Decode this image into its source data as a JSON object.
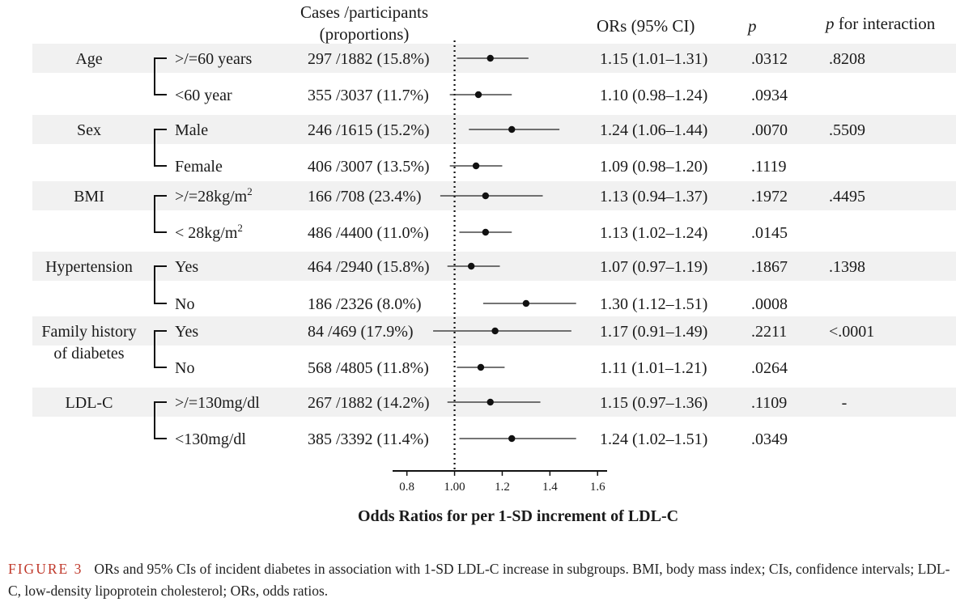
{
  "headers": {
    "cases_line1": "Cases /participants",
    "cases_line2": "(proportions)",
    "ors": "ORs (95% CI)",
    "p": "p",
    "p_interaction_italic": "p",
    "p_interaction_rest": " for interaction"
  },
  "groups": [
    {
      "label_lines": [
        "Age"
      ],
      "p_interaction": ".8208"
    },
    {
      "label_lines": [
        "Sex"
      ],
      "p_interaction": ".5509"
    },
    {
      "label_lines": [
        "BMI"
      ],
      "p_interaction": ".4495"
    },
    {
      "label_lines": [
        "Hypertension"
      ],
      "p_interaction": ".1398"
    },
    {
      "label_lines": [
        "Family history",
        "of diabetes"
      ],
      "p_interaction": "<.0001"
    },
    {
      "label_lines": [
        "LDL-C"
      ],
      "p_interaction": "-"
    }
  ],
  "rows": [
    {
      "group": 0,
      "label": ">/=60 years",
      "cases": "297 /1882 (15.8%)",
      "ci_text": "1.15 (1.01–1.31)",
      "p": ".0312",
      "or": 1.15,
      "lo": 1.01,
      "hi": 1.31
    },
    {
      "group": 0,
      "label": "<60 year",
      "cases": "355 /3037 (11.7%)",
      "ci_text": "1.10 (0.98–1.24)",
      "p": ".0934",
      "or": 1.1,
      "lo": 0.98,
      "hi": 1.24
    },
    {
      "group": 1,
      "label": "Male",
      "cases": "246 /1615 (15.2%)",
      "ci_text": "1.24 (1.06–1.44)",
      "p": ".0070",
      "or": 1.24,
      "lo": 1.06,
      "hi": 1.44
    },
    {
      "group": 1,
      "label": "Female",
      "cases": "406 /3007 (13.5%)",
      "ci_text": "1.09 (0.98–1.20)",
      "p": ".1119",
      "or": 1.09,
      "lo": 0.98,
      "hi": 1.2
    },
    {
      "group": 2,
      "label": ">/=28kg/m²",
      "cases": "166 /708 (23.4%)",
      "ci_text": "1.13 (0.94–1.37)",
      "p": ".1972",
      "or": 1.13,
      "lo": 0.94,
      "hi": 1.37
    },
    {
      "group": 2,
      "label": "< 28kg/m²",
      "cases": "486 /4400 (11.0%)",
      "ci_text": "1.13 (1.02–1.24)",
      "p": ".0145",
      "or": 1.13,
      "lo": 1.02,
      "hi": 1.24
    },
    {
      "group": 3,
      "label": "Yes",
      "cases": "464 /2940 (15.8%)",
      "ci_text": "1.07 (0.97–1.19)",
      "p": ".1867",
      "or": 1.07,
      "lo": 0.97,
      "hi": 1.19
    },
    {
      "group": 3,
      "label": "No",
      "cases": "186 /2326 (8.0%)",
      "ci_text": "1.30 (1.12–1.51)",
      "p": ".0008",
      "or": 1.3,
      "lo": 1.12,
      "hi": 1.51
    },
    {
      "group": 4,
      "label": "Yes",
      "cases": "84 /469 (17.9%)",
      "ci_text": "1.17 (0.91–1.49)",
      "p": ".2211",
      "or": 1.17,
      "lo": 0.91,
      "hi": 1.49
    },
    {
      "group": 4,
      "label": "No",
      "cases": "568 /4805 (11.8%)",
      "ci_text": "1.11 (1.01–1.21)",
      "p": ".0264",
      "or": 1.11,
      "lo": 1.01,
      "hi": 1.21
    },
    {
      "group": 5,
      "label": ">/=130mg/dl",
      "cases": "267 /1882 (14.2%)",
      "ci_text": "1.15 (0.97–1.36)",
      "p": ".1109",
      "or": 1.15,
      "lo": 0.97,
      "hi": 1.36
    },
    {
      "group": 5,
      "label": "<130mg/dl",
      "cases": "385 /3392 (11.4%)",
      "ci_text": "1.24 (1.02–1.51)",
      "p": ".0349",
      "or": 1.24,
      "lo": 1.02,
      "hi": 1.51
    }
  ],
  "chart_data": {
    "type": "forest",
    "reference_line": 1.0,
    "xlim": [
      0.74,
      1.64
    ],
    "xticks": [
      {
        "value": 0.8,
        "label": "0.8"
      },
      {
        "value": 1.0,
        "label": "1.00"
      },
      {
        "value": 1.2,
        "label": "1.2"
      },
      {
        "value": 1.4,
        "label": "1.4"
      },
      {
        "value": 1.6,
        "label": "1.6"
      }
    ],
    "xlabel": "Odds  Ratios  for per 1-SD  increment of LDL-C",
    "shaded_rows": "first row of each subgroup",
    "colors": {
      "shade": "#f1f1f1",
      "marker": "#111111",
      "ci_line": "#222222"
    }
  },
  "caption": {
    "figure_label": "FIGURE 3",
    "text": "ORs and 95% CIs of incident diabetes in association with 1-SD LDL-C increase in subgroups. BMI, body mass index; CIs, confidence intervals; LDL-C, low-density lipoprotein cholesterol; ORs, odds ratios."
  }
}
